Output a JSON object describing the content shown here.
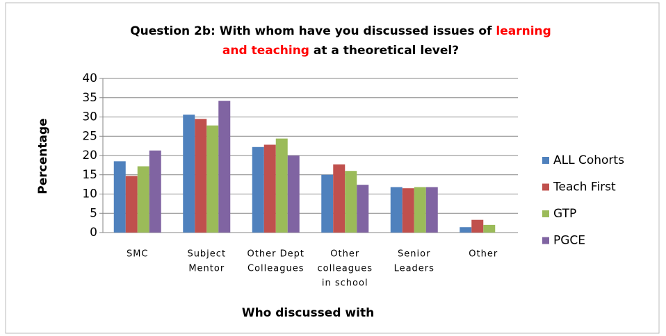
{
  "chart_data": {
    "type": "bar",
    "title": [
      [
        {
          "text": "Question 2b: With whom have you discussed issues of ",
          "color": "#000000"
        },
        {
          "text": "learning",
          "color": "#ff0000"
        }
      ],
      [
        {
          "text": "and teaching",
          "color": "#ff0000"
        },
        {
          "text": " at a theoretical level?",
          "color": "#000000"
        }
      ]
    ],
    "y_label": "Percentage",
    "x_label": "Who discussed with",
    "categories": [
      [
        "SMC"
      ],
      [
        "Subject",
        "Mentor"
      ],
      [
        "Other Dept",
        "Colleagues"
      ],
      [
        "Other",
        "colleagues",
        "in school"
      ],
      [
        "Senior",
        "Leaders"
      ],
      [
        "Other"
      ]
    ],
    "series": [
      {
        "name": "ALL Cohorts",
        "color": "#4f81bd",
        "values": [
          18.5,
          30.6,
          22.2,
          15.0,
          11.8,
          1.4
        ]
      },
      {
        "name": "Teach First",
        "color": "#c0504d",
        "values": [
          14.7,
          29.5,
          22.8,
          17.7,
          11.5,
          3.3
        ]
      },
      {
        "name": "GTP",
        "color": "#9bbb59",
        "values": [
          17.2,
          27.8,
          24.4,
          16.0,
          11.8,
          2.0
        ]
      },
      {
        "name": "PGCE",
        "color": "#8064a2",
        "values": [
          21.3,
          34.2,
          20.0,
          12.4,
          11.8,
          0
        ]
      }
    ],
    "ylim": [
      0,
      40
    ],
    "yticks": [
      0,
      5,
      10,
      15,
      20,
      25,
      30,
      35,
      40
    ],
    "grid": true,
    "legend": "right"
  }
}
